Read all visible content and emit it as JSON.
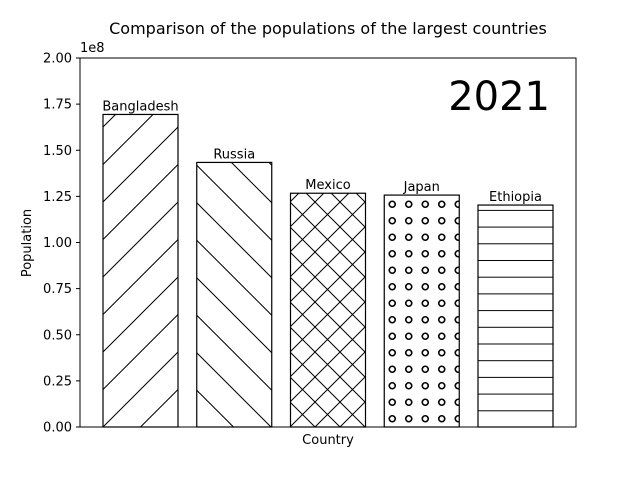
{
  "chart_data": {
    "type": "bar",
    "title": "Comparison of the populations of the largest countries",
    "xlabel": "Country",
    "ylabel": "Population",
    "y_multiplier_label": "1e8",
    "year_label": "2021",
    "categories": [
      "Bangladesh",
      "Russia",
      "Mexico",
      "Japan",
      "Ethiopia"
    ],
    "values": [
      169400000,
      143400000,
      126700000,
      125700000,
      120300000
    ],
    "ylim": [
      0,
      200000000
    ],
    "yticks": [
      0,
      25000000,
      50000000,
      75000000,
      100000000,
      125000000,
      150000000,
      175000000,
      200000000
    ],
    "ytick_labels": [
      "0.00",
      "0.25",
      "0.50",
      "0.75",
      "1.00",
      "1.25",
      "1.50",
      "1.75",
      "2.00"
    ],
    "hatches": [
      "diagonal-up",
      "diagonal-down",
      "cross",
      "circles",
      "horizontal"
    ],
    "grid": false,
    "bar_fill": "#ffffff",
    "bar_edge": "#000000"
  }
}
